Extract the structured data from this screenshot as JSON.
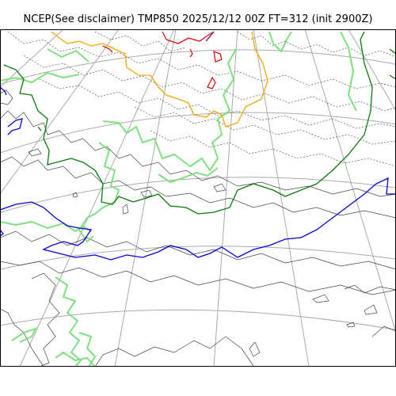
{
  "figure": {
    "title": "NCEP(See disclaimer) TMP850 2025/12/12 00Z FT=312 (init 2900Z)"
  },
  "colors": {
    "background": "#ffffff",
    "frame": "#000000",
    "graticule": "#aaaaaa",
    "coastline": "#444444",
    "contour_dashed": "#555555",
    "contour_green_light": "#7fe07f",
    "contour_green_dark": "#0a7a0a",
    "contour_orange": "#f5a700",
    "contour_red": "#e01010",
    "contour_blue": "#0000dd",
    "contour_purple": "#7a2a8a"
  },
  "map": {
    "projection": "polar-stereographic",
    "graticule": true,
    "field": "TMP850",
    "valid": "2025/12/12 00Z",
    "forecast_hour": 312
  }
}
